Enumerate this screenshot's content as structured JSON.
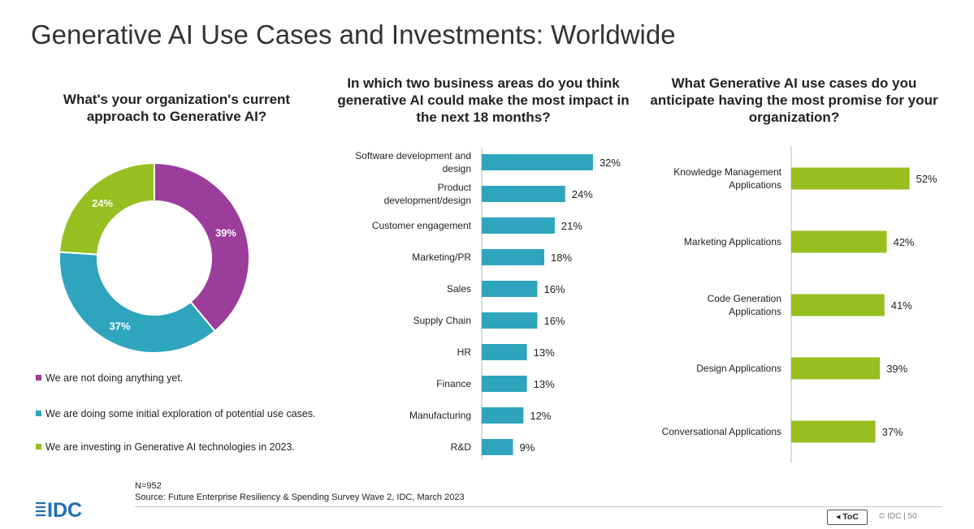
{
  "title": "Generative AI Use Cases and Investments: Worldwide",
  "colors": {
    "purple": "#9b3d9b",
    "teal": "#2fa5bd",
    "green": "#96bf1f"
  },
  "chart_data": [
    {
      "type": "pie",
      "title": "What's your organization's current approach to Generative AI?",
      "categories": [
        "We are not doing anything yet.",
        "We are doing some initial exploration of potential use cases.",
        "We are investing in Generative AI technologies in 2023."
      ],
      "values": [
        39,
        37,
        24
      ],
      "labels": [
        "39%",
        "37%",
        "24%"
      ],
      "colors": [
        "#9b3d9b",
        "#2fa5bd",
        "#96bf1f"
      ],
      "legend": "bottom"
    },
    {
      "type": "bar",
      "orientation": "horizontal",
      "title": "In which two business areas do you think generative AI could make the most impact in the next 18 months?",
      "categories": [
        "Software development and design",
        "Product development/design",
        "Customer engagement",
        "Marketing/PR",
        "Sales",
        "Supply Chain",
        "HR",
        "Finance",
        "Manufacturing",
        "R&D"
      ],
      "values": [
        32,
        24,
        21,
        18,
        16,
        16,
        13,
        13,
        12,
        9
      ],
      "labels": [
        "32%",
        "24%",
        "21%",
        "18%",
        "16%",
        "16%",
        "13%",
        "13%",
        "12%",
        "9%"
      ],
      "color": "#2fa5bd"
    },
    {
      "type": "bar",
      "orientation": "horizontal",
      "title": "What Generative AI use cases do you anticipate having the most promise for your organization?",
      "categories": [
        "Knowledge Management Applications",
        "Marketing Applications",
        "Code Generation Applications",
        "Design Applications",
        "Conversational Applications"
      ],
      "values": [
        52,
        42,
        41,
        39,
        37
      ],
      "labels": [
        "52%",
        "42%",
        "41%",
        "39%",
        "37%"
      ],
      "color": "#96bf1f"
    }
  ],
  "footer": {
    "n": "N=952",
    "source": "Source: Future Enterprise Resiliency & Spending Survey Wave 2, IDC, March 2023",
    "logo": "IDC",
    "toc": "◂ ToC",
    "copyright": "© IDC | 50"
  }
}
